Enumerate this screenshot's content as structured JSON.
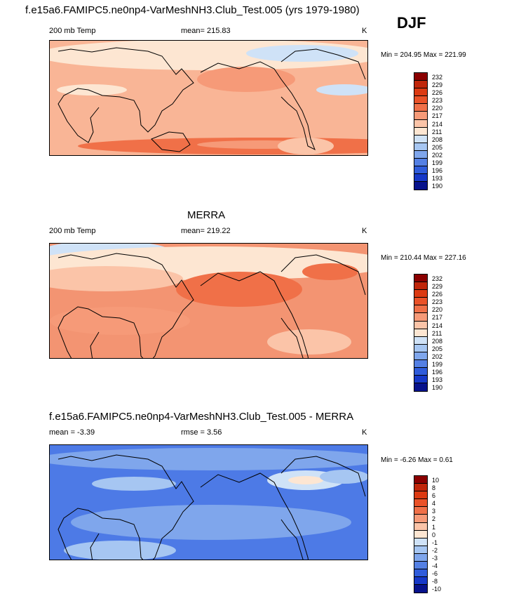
{
  "header": {
    "title": "f.e15a6.FAMIPC5.ne0np4-VarMeshNH3.Club_Test.005 (yrs 1979-1980)",
    "season": "DJF"
  },
  "panels": [
    {
      "variable": "200 mb Temp",
      "stat": "mean= 215.83",
      "units": "K",
      "minmax": "Min = 204.95 Max = 221.99",
      "levels": [
        "232",
        "229",
        "226",
        "223",
        "220",
        "217",
        "214",
        "211",
        "208",
        "205",
        "202",
        "199",
        "196",
        "193",
        "190"
      ],
      "colors": [
        "#8b0000",
        "#c0260a",
        "#dc3a12",
        "#ea5228",
        "#f07048",
        "#f69a78",
        "#fbc4a8",
        "#fde6d2",
        "#cfe2f7",
        "#a6c6f2",
        "#7fa6ec",
        "#5480e4",
        "#2f5cdb",
        "#1638c8",
        "#07128c"
      ],
      "base_fill": "#f9b596"
    },
    {
      "title": "MERRA",
      "variable": "200 mb Temp",
      "stat": "mean= 219.22",
      "units": "K",
      "minmax": "Min = 210.44 Max = 227.16",
      "levels": [
        "232",
        "229",
        "226",
        "223",
        "220",
        "217",
        "214",
        "211",
        "208",
        "205",
        "202",
        "199",
        "196",
        "193",
        "190"
      ],
      "colors": [
        "#8b0000",
        "#c0260a",
        "#dc3a12",
        "#ea5228",
        "#f07048",
        "#f69a78",
        "#fbc4a8",
        "#fde6d2",
        "#cfe2f7",
        "#a6c6f2",
        "#7fa6ec",
        "#5480e4",
        "#2f5cdb",
        "#1638c8",
        "#07128c"
      ],
      "base_fill": "#f39472"
    },
    {
      "title": "f.e15a6.FAMIPC5.ne0np4-VarMeshNH3.Club_Test.005 - MERRA",
      "variable": "mean =  -3.39",
      "stat": "rmse =   3.56",
      "units": "K",
      "minmax": "Min =  -6.26 Max =   0.61",
      "levels": [
        "10",
        "8",
        "6",
        "4",
        "3",
        "2",
        "1",
        "0",
        "-1",
        "-2",
        "-3",
        "-4",
        "-6",
        "-8",
        "-10"
      ],
      "colors": [
        "#8b0000",
        "#c0260a",
        "#dc3a12",
        "#ea5228",
        "#f07048",
        "#f69a78",
        "#fbc4a8",
        "#fde6d2",
        "#cfe2f7",
        "#a6c6f2",
        "#7fa6ec",
        "#5480e4",
        "#2f5cdb",
        "#1638c8",
        "#07128c"
      ],
      "base_fill": "#4d7ae6"
    }
  ]
}
